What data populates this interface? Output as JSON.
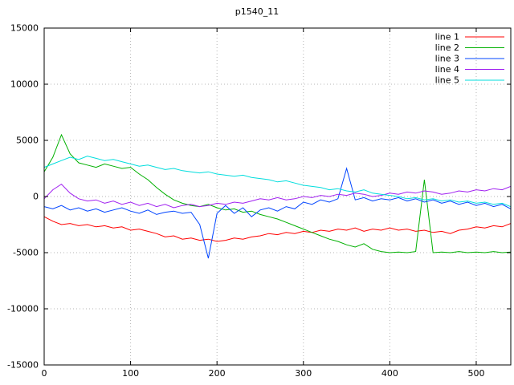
{
  "chart_data": {
    "type": "line",
    "title": "p1540_11",
    "xlabel": "",
    "ylabel": "",
    "xlim": [
      0,
      540
    ],
    "ylim": [
      -15000,
      15000
    ],
    "xticks": [
      0,
      100,
      200,
      300,
      400,
      500
    ],
    "yticks": [
      -15000,
      -10000,
      -5000,
      0,
      5000,
      10000,
      15000
    ],
    "grid": true,
    "grid_style": "dotted",
    "legend_position": "top-right",
    "background": "#ffffff",
    "x_start": 0,
    "x_step": 10,
    "series": [
      {
        "name": "line 1",
        "color": "#ff0000",
        "values": [
          -1800,
          -2200,
          -2500,
          -2400,
          -2600,
          -2500,
          -2700,
          -2600,
          -2800,
          -2700,
          -3000,
          -2900,
          -3100,
          -3300,
          -3600,
          -3500,
          -3800,
          -3700,
          -3900,
          -3800,
          -4000,
          -3900,
          -3700,
          -3800,
          -3600,
          -3500,
          -3300,
          -3400,
          -3200,
          -3300,
          -3100,
          -3200,
          -3000,
          -3100,
          -2900,
          -3000,
          -2800,
          -3100,
          -2900,
          -3000,
          -2800,
          -3000,
          -2900,
          -3100,
          -3000,
          -3200,
          -3100,
          -3300,
          -3000,
          -2900,
          -2700,
          -2800,
          -2600,
          -2700,
          -2400
        ]
      },
      {
        "name": "line 2",
        "color": "#00b000",
        "values": [
          2200,
          3500,
          5500,
          3800,
          3000,
          2800,
          2600,
          2900,
          2700,
          2500,
          2600,
          2000,
          1500,
          800,
          200,
          -300,
          -600,
          -800,
          -900,
          -700,
          -1000,
          -1200,
          -1100,
          -1400,
          -1300,
          -1600,
          -1800,
          -2000,
          -2300,
          -2600,
          -2900,
          -3200,
          -3500,
          -3800,
          -4000,
          -4300,
          -4500,
          -4200,
          -4700,
          -4900,
          -5000,
          -4950,
          -5000,
          -4900,
          1500,
          -5000,
          -4950,
          -5000,
          -4900,
          -5000,
          -4950,
          -5000,
          -4900,
          -5000,
          -4950
        ]
      },
      {
        "name": "line 3",
        "color": "#0044ff",
        "values": [
          -900,
          -1100,
          -800,
          -1200,
          -1000,
          -1300,
          -1100,
          -1400,
          -1200,
          -1000,
          -1300,
          -1500,
          -1200,
          -1600,
          -1400,
          -1300,
          -1500,
          -1400,
          -2500,
          -5500,
          -1500,
          -800,
          -1500,
          -1000,
          -1800,
          -1200,
          -1000,
          -1300,
          -900,
          -1100,
          -500,
          -700,
          -300,
          -500,
          -200,
          2500,
          -300,
          -100,
          -400,
          -200,
          -300,
          -100,
          -400,
          -200,
          -500,
          -300,
          -600,
          -400,
          -700,
          -500,
          -800,
          -600,
          -900,
          -700,
          -1100
        ]
      },
      {
        "name": "line 4",
        "color": "#a020f0",
        "values": [
          -200,
          600,
          1100,
          300,
          -200,
          -400,
          -300,
          -600,
          -400,
          -700,
          -500,
          -800,
          -600,
          -900,
          -700,
          -1000,
          -800,
          -700,
          -900,
          -800,
          -600,
          -700,
          -500,
          -600,
          -400,
          -200,
          -300,
          -100,
          -300,
          -200,
          0,
          -100,
          100,
          0,
          200,
          100,
          300,
          200,
          0,
          100,
          300,
          200,
          400,
          300,
          500,
          400,
          200,
          300,
          500,
          400,
          600,
          500,
          700,
          600,
          900
        ]
      },
      {
        "name": "line 5",
        "color": "#00dddd",
        "values": [
          2600,
          2900,
          3200,
          3500,
          3300,
          3600,
          3400,
          3200,
          3300,
          3100,
          2900,
          2700,
          2800,
          2600,
          2400,
          2500,
          2300,
          2200,
          2100,
          2200,
          2000,
          1900,
          1800,
          1900,
          1700,
          1600,
          1500,
          1300,
          1400,
          1200,
          1000,
          900,
          800,
          600,
          700,
          500,
          400,
          600,
          300,
          200,
          100,
          0,
          -200,
          -100,
          -300,
          -200,
          -400,
          -300,
          -500,
          -400,
          -600,
          -500,
          -700,
          -600,
          -900
        ]
      }
    ]
  }
}
